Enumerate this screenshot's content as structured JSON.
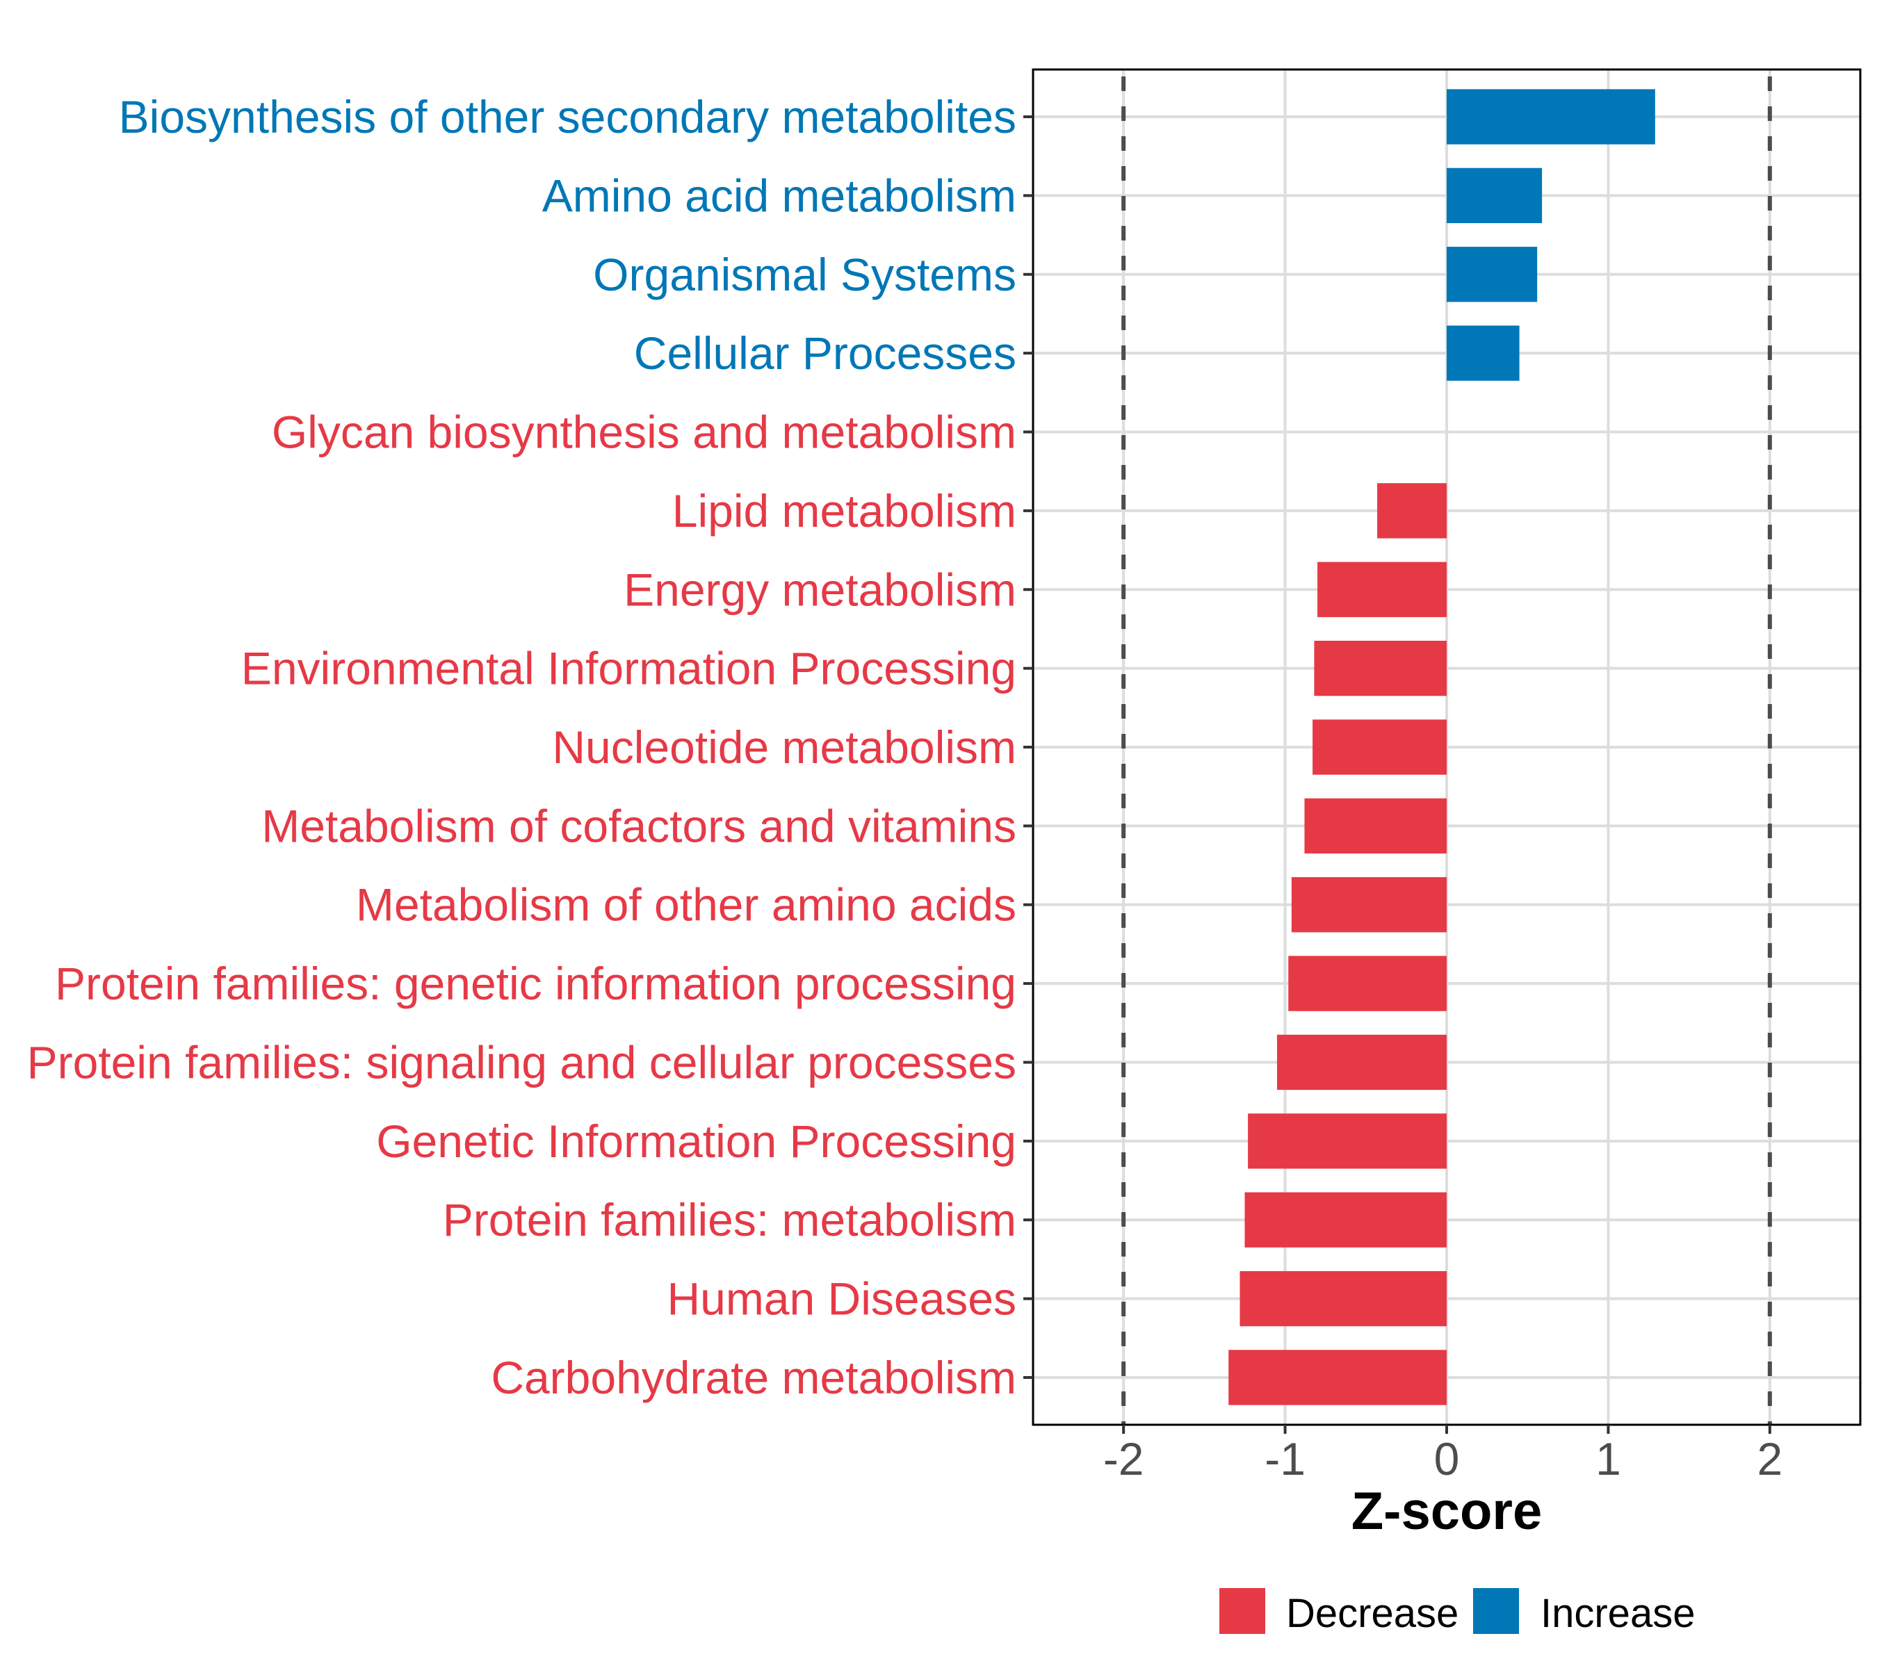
{
  "chart_data": {
    "type": "bar",
    "orientation": "horizontal",
    "title": "",
    "xlabel": "Z-score",
    "ylabel": "",
    "xlim": [
      -2.56,
      2.56
    ],
    "xticks": [
      -2,
      -1,
      0,
      1,
      2
    ],
    "xtick_labels": [
      "-2",
      "-1",
      "0",
      "1",
      "2"
    ],
    "reference_lines": [
      {
        "x": -2,
        "style": "dashed"
      },
      {
        "x": 2,
        "style": "dashed"
      }
    ],
    "grid": true,
    "categories": [
      "Biosynthesis of other secondary metabolites",
      "Amino acid metabolism",
      "Organismal Systems",
      "Cellular Processes",
      "Glycan biosynthesis and metabolism",
      "Lipid metabolism",
      "Energy metabolism",
      "Environmental Information Processing",
      "Nucleotide metabolism",
      "Metabolism of cofactors and vitamins",
      "Metabolism of other amino acids",
      "Protein families: genetic information processing",
      "Protein families: signaling and cellular processes",
      "Genetic Information Processing",
      "Protein families: metabolism",
      "Human Diseases",
      "Carbohydrate metabolism"
    ],
    "values": [
      1.29,
      0.59,
      0.56,
      0.45,
      0.0,
      -0.43,
      -0.8,
      -0.82,
      -0.83,
      -0.88,
      -0.96,
      -0.98,
      -1.05,
      -1.23,
      -1.25,
      -1.28,
      -1.35
    ],
    "groups": [
      "Increase",
      "Increase",
      "Increase",
      "Increase",
      "Decrease",
      "Decrease",
      "Decrease",
      "Decrease",
      "Decrease",
      "Decrease",
      "Decrease",
      "Decrease",
      "Decrease",
      "Decrease",
      "Decrease",
      "Decrease",
      "Decrease"
    ],
    "legend": {
      "position": "bottom",
      "entries": [
        {
          "label": "Decrease",
          "color": "#E63946"
        },
        {
          "label": "Increase",
          "color": "#0077B6"
        }
      ]
    }
  },
  "colors": {
    "Decrease": "#E63946",
    "Increase": "#0077B6",
    "grid": "#DDDDDD",
    "reference_line": "#4D4D4D",
    "axis_text": "#4D4D4D"
  }
}
